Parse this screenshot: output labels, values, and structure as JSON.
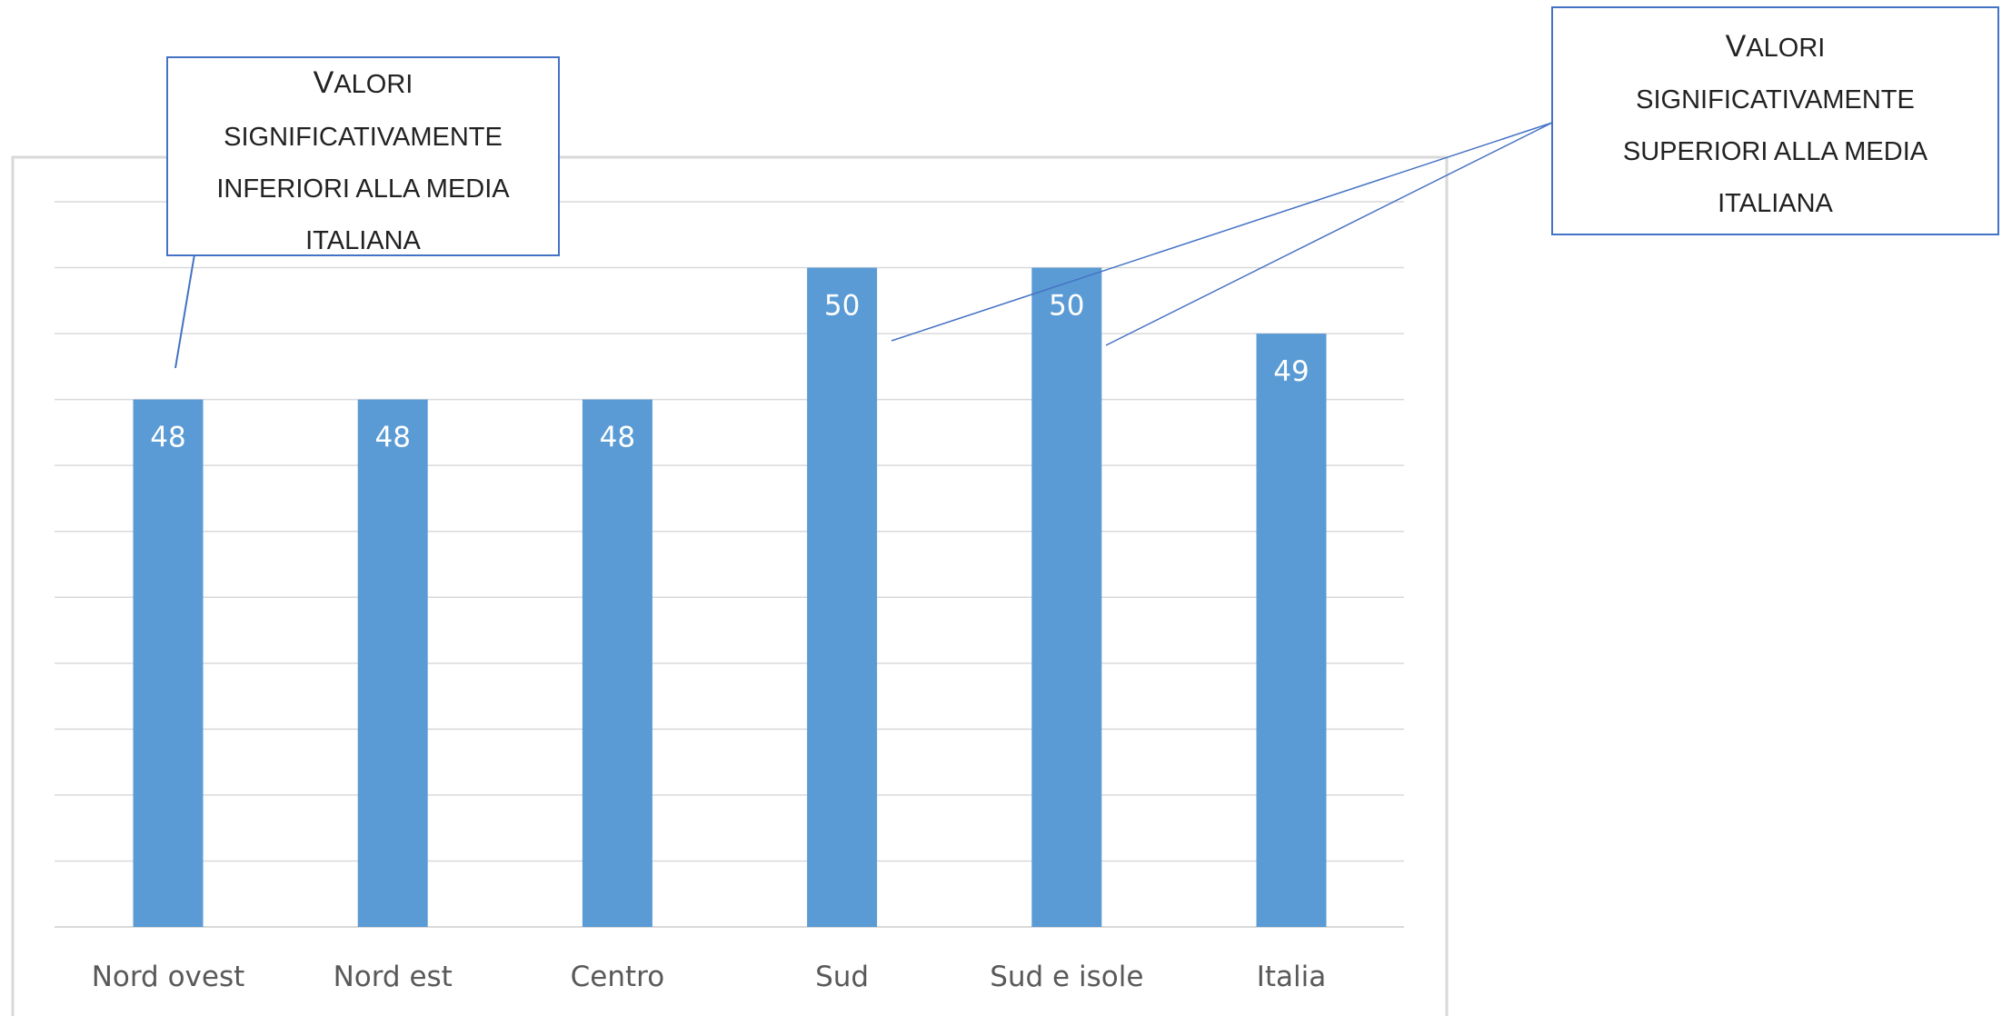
{
  "chart_data": {
    "type": "bar",
    "categories": [
      "Nord ovest",
      "Nord est",
      "Centro",
      "Sud",
      "Sud e isole",
      "Italia"
    ],
    "values": [
      48,
      48,
      48,
      50,
      50,
      49
    ],
    "data_labels": [
      "48",
      "48",
      "48",
      "50",
      "50",
      "49"
    ],
    "title": "",
    "xlabel": "",
    "ylabel": "",
    "y_axis_labels_visible": false,
    "ylim": [
      40,
      51
    ],
    "grid": true,
    "legend": "none",
    "bar_color": "#5B9BD5"
  },
  "annotations": {
    "inferior": {
      "lines": [
        "Valori",
        "significativamente",
        "inferiori alla media",
        "italiana"
      ]
    },
    "superior": {
      "lines": [
        "Valori",
        "significativamente",
        "superiori alla media",
        "italiana"
      ]
    }
  },
  "colors": {
    "callout_border": "#4472C4",
    "grid": "#D9D9D9",
    "chart_border": "#D9D9D9"
  }
}
